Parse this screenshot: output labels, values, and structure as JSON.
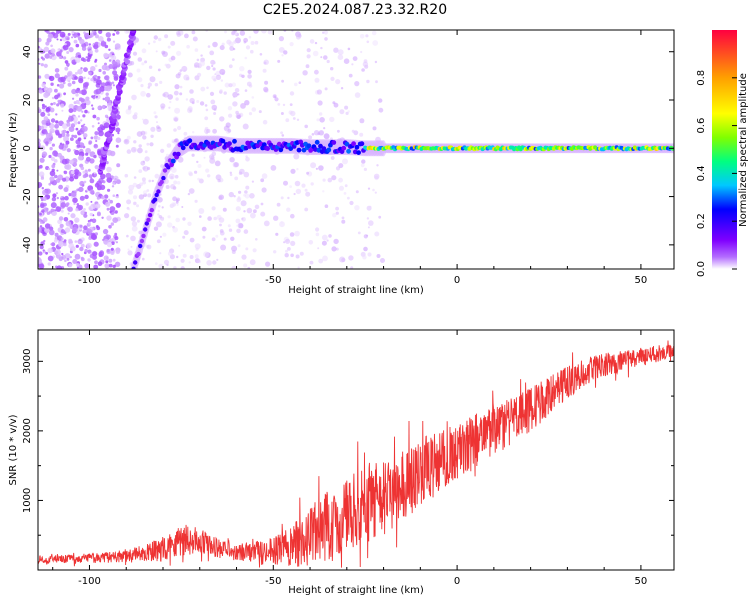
{
  "title": "C2E5.2024.087.23.32.R20",
  "chart_data": [
    {
      "type": "heatmap",
      "xlabel": "Height of straight line (km)",
      "ylabel": "Frequency (Hz)",
      "xlim": [
        -114,
        59
      ],
      "ylim": [
        -50,
        49
      ],
      "xticks": [
        -100,
        -50,
        0,
        50
      ],
      "yticks": [
        -40,
        -20,
        0,
        20,
        40
      ],
      "colorbar": {
        "label": "Normalized spectral amplitude",
        "range": [
          0,
          1
        ],
        "ticks": [
          "0.0",
          "0.2",
          "0.4",
          "0.6",
          "0.8"
        ],
        "colormap": [
          "#ffffff",
          "#b46eff",
          "#8000ff",
          "#0000ff",
          "#00c8ff",
          "#00ff80",
          "#80ff00",
          "#ffff00",
          "#ffa000",
          "#ff0040"
        ]
      },
      "ridge": {
        "x": [
          -88,
          -85,
          -82,
          -79,
          -76,
          -73,
          -70,
          -65,
          -60,
          -55,
          -50,
          -45,
          -40,
          -35,
          -30,
          -25,
          -20,
          -10,
          0,
          10,
          20,
          30,
          40,
          50,
          59
        ],
        "y": [
          -50,
          -35,
          -20,
          -8,
          -1,
          2,
          2,
          2,
          1,
          1,
          1,
          1,
          0.5,
          0.5,
          0.5,
          0,
          0,
          0,
          0,
          0,
          0,
          0,
          0,
          0,
          0
        ]
      },
      "secondary_line": {
        "x": [
          -97,
          -88
        ],
        "y": [
          -10,
          49
        ]
      },
      "grid": false
    },
    {
      "type": "line",
      "xlabel": "Height of straight line (km)",
      "ylabel": "SNR (10 * v/v)",
      "xlim": [
        -114,
        59
      ],
      "ylim": [
        0,
        3450
      ],
      "xticks": [
        -100,
        -50,
        0,
        50
      ],
      "yticks": [
        1000,
        2000,
        3000
      ],
      "line_color": "#ee3333",
      "series": [
        {
          "x": [
            -114,
            -110,
            -105,
            -100,
            -95,
            -90,
            -85,
            -80,
            -75,
            -70,
            -65,
            -60,
            -55,
            -50,
            -45,
            -40,
            -35,
            -30,
            -25,
            -20,
            -15,
            -10,
            -5,
            0,
            5,
            10,
            15,
            20,
            25,
            30,
            35,
            40,
            45,
            50,
            55,
            59
          ],
          "values": [
            150,
            150,
            160,
            170,
            180,
            200,
            240,
            300,
            450,
            420,
            300,
            260,
            260,
            280,
            350,
            480,
            650,
            800,
            900,
            1050,
            1200,
            1400,
            1550,
            1700,
            1850,
            2000,
            2150,
            2300,
            2500,
            2700,
            2850,
            2950,
            3000,
            3050,
            3100,
            3150
          ],
          "amplitude": [
            60,
            60,
            60,
            70,
            80,
            100,
            120,
            180,
            250,
            180,
            150,
            120,
            150,
            200,
            300,
            450,
            500,
            550,
            550,
            550,
            500,
            500,
            450,
            400,
            400,
            380,
            350,
            320,
            280,
            230,
            200,
            170,
            150,
            130,
            120,
            100
          ]
        }
      ],
      "grid": false
    }
  ]
}
